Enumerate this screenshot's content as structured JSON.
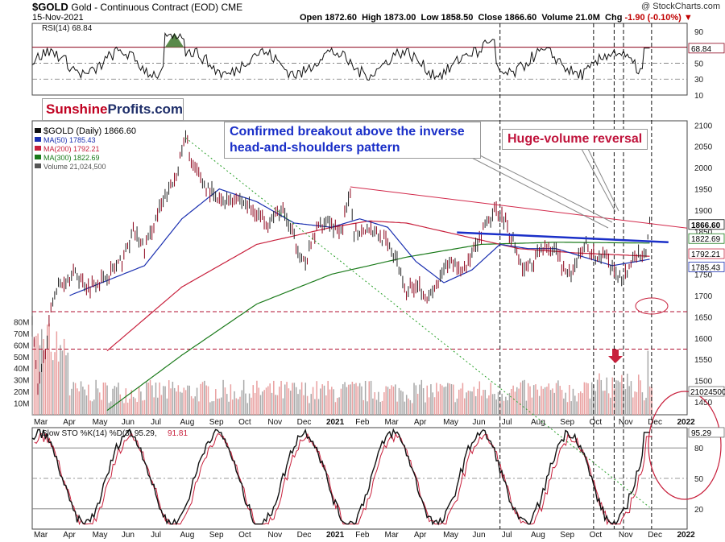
{
  "header": {
    "symbol": "$GOLD",
    "description": "Gold - Continuous Contract (EOD) CME",
    "date": "15-Nov-2021",
    "open_label": "Open",
    "open": "1872.60",
    "high_label": "High",
    "high": "1873.00",
    "low_label": "Low",
    "low": "1858.50",
    "close_label": "Close",
    "close": "1866.60",
    "volume_label": "Volume",
    "volume": "21.0M",
    "chg_label": "Chg",
    "chg": "-1.90 (-0.10%)",
    "credit": "@ StockCharts.com"
  },
  "brand": {
    "part1": "Sunshine",
    "part2": "Profits.com"
  },
  "annotations": {
    "breakout": "Confirmed breakout above the inverse head-and-shoulders pattern",
    "reversal": "Huge-volume reversal"
  },
  "colors": {
    "price": "#8b0018",
    "ma50": "#1a2fb0",
    "ma200": "#c8203c",
    "ma300": "#1a7a1a",
    "volume_up": "#e9a0a0",
    "volume_down": "#a8a8a8",
    "rsi_fill": "#5a8a4a",
    "trend_blue": "#1a2fc8",
    "trend_red": "#d2284a",
    "guide_green": "#2aa02a"
  },
  "chart_data": [
    {
      "panel": "rsi",
      "type": "line",
      "title": "RSI(14) 68.84",
      "ylim": [
        10,
        100
      ],
      "yticks": [
        "90",
        "70",
        "50",
        "30",
        "10"
      ],
      "current_badge": "68.84",
      "levels": [
        70,
        50,
        30
      ],
      "series": [
        {
          "name": "RSI(14)",
          "start": 62,
          "min": 25,
          "max": 88,
          "end": 68.84
        }
      ]
    },
    {
      "panel": "price",
      "type": "line",
      "legend": {
        "price": "$GOLD (Daily) 1866.60",
        "ma50": "MA(50) 1785.43",
        "ma200": "MA(200) 1792.21",
        "ma300": "MA(300) 1822.69",
        "volume": "Volume 21,024,500"
      },
      "ylim": [
        1420,
        2110
      ],
      "yticks": [
        "2100",
        "2050",
        "2000",
        "1950",
        "1900",
        "1850",
        "1800",
        "1750",
        "1700",
        "1650",
        "1600",
        "1550",
        "1500",
        "1450"
      ],
      "volume_ticks": [
        "80M",
        "70M",
        "60M",
        "50M",
        "40M",
        "30M",
        "20M",
        "10M"
      ],
      "volume_badge": "21024500",
      "price_badges": [
        "1866.60",
        "1822.69",
        "1792.21",
        "1785.43"
      ],
      "x_months": [
        "Mar",
        "Apr",
        "May",
        "Jun",
        "Jul",
        "Aug",
        "Sep",
        "Oct",
        "Nov",
        "Dec",
        "2021",
        "Feb",
        "Mar",
        "Apr",
        "May",
        "Jun",
        "Jul",
        "Aug",
        "Sep",
        "Oct",
        "Nov",
        "Dec",
        "2022"
      ],
      "price_anchors": [
        [
          0,
          1650
        ],
        [
          3,
          1470
        ],
        [
          12,
          1710
        ],
        [
          22,
          1755
        ],
        [
          30,
          1720
        ],
        [
          38,
          1740
        ],
        [
          48,
          1780
        ],
        [
          54,
          1850
        ],
        [
          60,
          1810
        ],
        [
          68,
          1900
        ],
        [
          76,
          1970
        ],
        [
          82,
          2070
        ],
        [
          86,
          2000
        ],
        [
          92,
          1960
        ],
        [
          100,
          1920
        ],
        [
          110,
          1930
        ],
        [
          118,
          1900
        ],
        [
          126,
          1875
        ],
        [
          134,
          1900
        ],
        [
          140,
          1830
        ],
        [
          146,
          1770
        ],
        [
          152,
          1860
        ],
        [
          158,
          1880
        ],
        [
          164,
          1840
        ],
        [
          170,
          1930
        ],
        [
          172,
          1850
        ],
        [
          180,
          1860
        ],
        [
          188,
          1830
        ],
        [
          194,
          1790
        ],
        [
          200,
          1710
        ],
        [
          206,
          1730
        ],
        [
          212,
          1690
        ],
        [
          218,
          1740
        ],
        [
          224,
          1780
        ],
        [
          230,
          1760
        ],
        [
          236,
          1800
        ],
        [
          242,
          1860
        ],
        [
          248,
          1900
        ],
        [
          252,
          1880
        ],
        [
          258,
          1820
        ],
        [
          262,
          1760
        ],
        [
          268,
          1780
        ],
        [
          274,
          1820
        ],
        [
          280,
          1800
        ],
        [
          284,
          1760
        ],
        [
          288,
          1740
        ],
        [
          292,
          1790
        ],
        [
          296,
          1820
        ],
        [
          302,
          1780
        ],
        [
          306,
          1800
        ],
        [
          310,
          1760
        ],
        [
          314,
          1740
        ],
        [
          318,
          1760
        ],
        [
          322,
          1790
        ],
        [
          326,
          1800
        ],
        [
          328,
          1790
        ],
        [
          330,
          1870
        ]
      ],
      "ma50_anchors": [
        [
          20,
          1700
        ],
        [
          60,
          1770
        ],
        [
          80,
          1880
        ],
        [
          100,
          1950
        ],
        [
          120,
          1920
        ],
        [
          140,
          1870
        ],
        [
          160,
          1860
        ],
        [
          175,
          1880
        ],
        [
          190,
          1860
        ],
        [
          205,
          1780
        ],
        [
          220,
          1730
        ],
        [
          235,
          1760
        ],
        [
          250,
          1820
        ],
        [
          265,
          1810
        ],
        [
          280,
          1810
        ],
        [
          295,
          1790
        ],
        [
          310,
          1770
        ],
        [
          330,
          1785
        ]
      ],
      "ma200_anchors": [
        [
          40,
          1570
        ],
        [
          80,
          1720
        ],
        [
          120,
          1820
        ],
        [
          160,
          1860
        ],
        [
          180,
          1875
        ],
        [
          200,
          1870
        ],
        [
          230,
          1840
        ],
        [
          260,
          1810
        ],
        [
          290,
          1800
        ],
        [
          330,
          1792
        ]
      ],
      "ma300_anchors": [
        [
          40,
          1430
        ],
        [
          80,
          1560
        ],
        [
          120,
          1680
        ],
        [
          160,
          1750
        ],
        [
          200,
          1790
        ],
        [
          240,
          1820
        ],
        [
          280,
          1825
        ],
        [
          330,
          1823
        ]
      ],
      "trend_lines": [
        {
          "name": "neckline",
          "from_day": 227,
          "from_price": 1848,
          "to_day": 340,
          "to_price": 1825
        },
        {
          "name": "resistance",
          "from_day": 170,
          "from_price": 1955,
          "to_day": 350,
          "to_price": 1858
        },
        {
          "name": "support",
          "from_day": 0,
          "from_price": 1662,
          "to_day": 350,
          "to_price": 1662
        },
        {
          "name": "support2",
          "from_day": 0,
          "from_price": 1574,
          "to_day": 350,
          "to_price": 1574
        },
        {
          "name": "guide",
          "from_day": 82,
          "from_price": 2070,
          "to_day": 330,
          "to_price": 1410
        }
      ]
    },
    {
      "panel": "stochastic",
      "type": "line",
      "title_black": "Slow STO %K(14) %D(3) 95.29,",
      "title_red": "91.81",
      "ylim": [
        0,
        100
      ],
      "yticks": [
        "80",
        "50",
        "20"
      ],
      "current_badge": "95.29",
      "levels": [
        80,
        50,
        20
      ],
      "series": [
        {
          "name": "%K(14)",
          "range": [
            5,
            98
          ],
          "end": 95.29
        },
        {
          "name": "%D(3)",
          "range": [
            5,
            98
          ],
          "end": 91.81
        }
      ]
    }
  ]
}
